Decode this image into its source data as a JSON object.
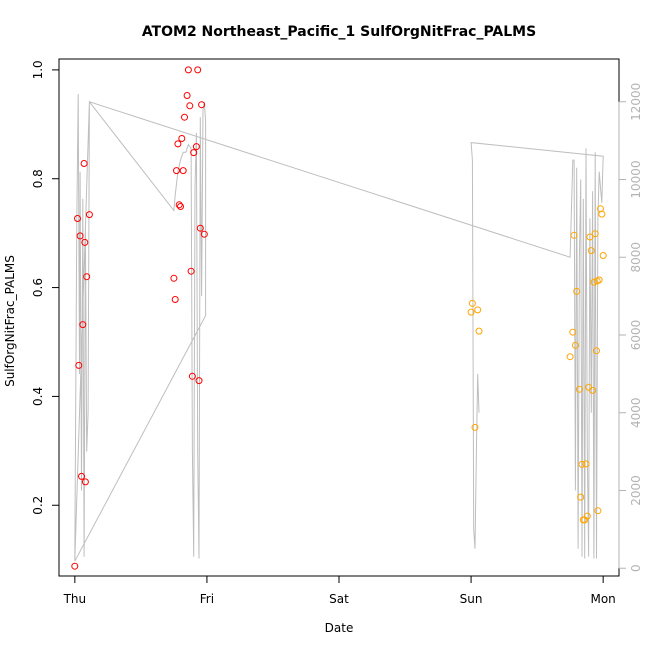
{
  "chart_data": {
    "type": "scatter",
    "title": "ATOM2 Northeast_Pacific_1 SulfOrgNitFrac_PALMS",
    "xlabel": "Date",
    "ylabel": "SulfOrgNitFrac_PALMS",
    "x_ticks": [
      "Thu",
      "Fri",
      "Sat",
      "Sun",
      "Mon"
    ],
    "y_ticks": [
      "0.2",
      "0.4",
      "0.6",
      "0.8",
      "1.0"
    ],
    "y2_ticks": [
      "0",
      "2000",
      "4000",
      "6000",
      "8000",
      "10000",
      "12000"
    ],
    "xlim": [
      -0.12,
      4.12
    ],
    "ylim": [
      0.07,
      1.02
    ],
    "y2lim": [
      -200,
      13100
    ],
    "grid": false,
    "legend": "none",
    "colors": {
      "series1": "#ff0000",
      "series2": "#ffa500",
      "altitude": "#bebebe",
      "axis": "#000000",
      "right_axis": "#b3b3b3"
    },
    "series": [
      {
        "color": "#ff0000",
        "points": [
          [
            0.0,
            0.088
          ],
          [
            0.02,
            0.727
          ],
          [
            0.03,
            0.457
          ],
          [
            0.04,
            0.695
          ],
          [
            0.05,
            0.253
          ],
          [
            0.06,
            0.532
          ],
          [
            0.07,
            0.828
          ],
          [
            0.075,
            0.683
          ],
          [
            0.08,
            0.243
          ],
          [
            0.09,
            0.62
          ],
          [
            0.11,
            0.734
          ],
          [
            0.75,
            0.617
          ],
          [
            0.76,
            0.578
          ],
          [
            0.77,
            0.815
          ],
          [
            0.78,
            0.864
          ],
          [
            0.79,
            0.752
          ],
          [
            0.8,
            0.749
          ],
          [
            0.81,
            0.874
          ],
          [
            0.82,
            0.815
          ],
          [
            0.83,
            0.913
          ],
          [
            0.85,
            0.953
          ],
          [
            0.86,
            1.0
          ],
          [
            0.87,
            0.934
          ],
          [
            0.88,
            0.63
          ],
          [
            0.89,
            0.437
          ],
          [
            0.9,
            0.848
          ],
          [
            0.92,
            0.859
          ],
          [
            0.93,
            1.0
          ],
          [
            0.94,
            0.429
          ],
          [
            0.95,
            0.709
          ],
          [
            0.96,
            0.936
          ],
          [
            0.98,
            0.698
          ]
        ]
      },
      {
        "color": "#ffa500",
        "points": [
          [
            3.0,
            0.555
          ],
          [
            3.01,
            0.571
          ],
          [
            3.03,
            0.343
          ],
          [
            3.05,
            0.559
          ],
          [
            3.06,
            0.52
          ],
          [
            3.75,
            0.473
          ],
          [
            3.77,
            0.518
          ],
          [
            3.78,
            0.696
          ],
          [
            3.79,
            0.494
          ],
          [
            3.8,
            0.593
          ],
          [
            3.82,
            0.413
          ],
          [
            3.83,
            0.215
          ],
          [
            3.84,
            0.275
          ],
          [
            3.85,
            0.173
          ],
          [
            3.86,
            0.173
          ],
          [
            3.87,
            0.276
          ],
          [
            3.88,
            0.18
          ],
          [
            3.89,
            0.417
          ],
          [
            3.9,
            0.693
          ],
          [
            3.91,
            0.668
          ],
          [
            3.92,
            0.411
          ],
          [
            3.93,
            0.61
          ],
          [
            3.94,
            0.699
          ],
          [
            3.95,
            0.484
          ],
          [
            3.955,
            0.612
          ],
          [
            3.96,
            0.19
          ],
          [
            3.97,
            0.614
          ],
          [
            3.98,
            0.745
          ],
          [
            3.99,
            0.735
          ],
          [
            4.0,
            0.659
          ]
        ]
      }
    ],
    "altitude_series": {
      "color": "#bebebe",
      "points": [
        [
          0.0,
          180
        ],
        [
          0.015,
          9000
        ],
        [
          0.025,
          12200
        ],
        [
          0.035,
          5000
        ],
        [
          0.04,
          10200
        ],
        [
          0.05,
          2000
        ],
        [
          0.06,
          9500
        ],
        [
          0.07,
          300
        ],
        [
          0.08,
          8800
        ],
        [
          0.09,
          3000
        ],
        [
          0.1,
          4000
        ],
        [
          0.11,
          12000
        ],
        [
          0.75,
          9200
        ],
        [
          0.76,
          9600
        ],
        [
          0.78,
          10200
        ],
        [
          0.8,
          10500
        ],
        [
          0.82,
          10700
        ],
        [
          0.84,
          10700
        ],
        [
          0.86,
          10900
        ],
        [
          0.88,
          10800
        ],
        [
          0.89,
          3000
        ],
        [
          0.9,
          300
        ],
        [
          0.91,
          9800
        ],
        [
          0.92,
          11200
        ],
        [
          0.93,
          3000
        ],
        [
          0.94,
          250
        ],
        [
          0.95,
          11600
        ],
        [
          0.96,
          7000
        ],
        [
          0.97,
          11800
        ],
        [
          0.98,
          12000
        ],
        [
          0.99,
          11500
        ],
        [
          0.99,
          6500
        ],
        [
          0.0,
          180
        ],
        [
          0.11,
          12000
        ],
        [
          3.75,
          8000
        ],
        [
          3.77,
          10500
        ],
        [
          3.78,
          10500
        ],
        [
          3.79,
          2000
        ],
        [
          3.8,
          10300
        ],
        [
          3.81,
          500
        ],
        [
          3.82,
          8000
        ],
        [
          3.83,
          10000
        ],
        [
          3.84,
          300
        ],
        [
          3.85,
          9500
        ],
        [
          3.86,
          250
        ],
        [
          3.87,
          10800
        ],
        [
          3.88,
          3000
        ],
        [
          3.89,
          300
        ],
        [
          3.9,
          9000
        ],
        [
          3.91,
          4000
        ],
        [
          3.92,
          9700
        ],
        [
          3.93,
          250
        ],
        [
          3.94,
          10700
        ],
        [
          3.95,
          250
        ],
        [
          3.96,
          9000
        ],
        [
          3.97,
          10200
        ],
        [
          3.98,
          9800
        ],
        [
          3.99,
          9400
        ],
        [
          4.0,
          10600
        ],
        [
          3.0,
          10950
        ],
        [
          3.01,
          10500
        ],
        [
          3.02,
          1000
        ],
        [
          3.03,
          500
        ],
        [
          3.04,
          3000
        ],
        [
          3.05,
          5000
        ],
        [
          3.06,
          4000
        ]
      ]
    }
  }
}
